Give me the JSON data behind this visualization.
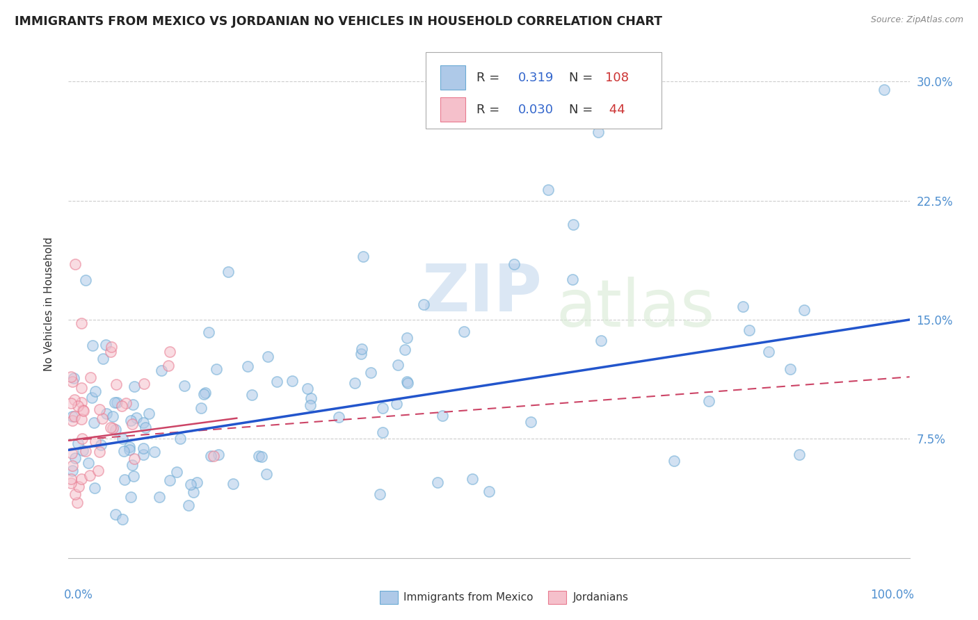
{
  "title": "IMMIGRANTS FROM MEXICO VS JORDANIAN NO VEHICLES IN HOUSEHOLD CORRELATION CHART",
  "source": "Source: ZipAtlas.com",
  "ylabel": "No Vehicles in Household",
  "ylim": [
    0.0,
    0.32
  ],
  "xlim": [
    0.0,
    1.0
  ],
  "ytick_vals": [
    0.075,
    0.15,
    0.225,
    0.3
  ],
  "ytick_labels": [
    "7.5%",
    "15.0%",
    "22.5%",
    "30.0%"
  ],
  "watermark_zip": "ZIP",
  "watermark_atlas": "atlas",
  "series1_color": "#aec9e8",
  "series1_edge": "#6aaad4",
  "series2_color": "#f5c0cb",
  "series2_edge": "#e87a90",
  "trendline1_color": "#2255cc",
  "trendline2_color": "#cc4466",
  "trendline2_dashes": [
    6,
    4
  ],
  "r1": 0.319,
  "n1": 108,
  "r2": 0.03,
  "n2": 44,
  "legend_r_color": "#3366cc",
  "legend_n_color": "#cc3333",
  "tick_color": "#5090d0",
  "title_color": "#222222",
  "source_color": "#888888",
  "ylabel_color": "#333333",
  "grid_color": "#cccccc"
}
